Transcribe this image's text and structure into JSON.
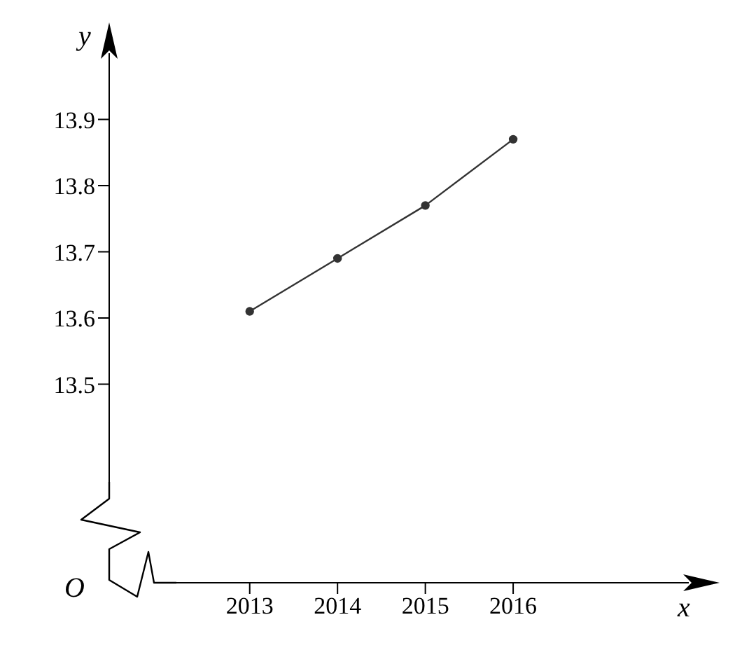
{
  "chart_data": {
    "type": "line",
    "xlabel": "x",
    "ylabel": "y",
    "annotations": [
      "O"
    ],
    "categories": [
      "2013",
      "2014",
      "2015",
      "2016"
    ],
    "series": [
      {
        "color": "#333333",
        "values": [
          13.61,
          13.69,
          13.77,
          13.87
        ]
      }
    ],
    "ylim": [
      13.2,
      14.0
    ],
    "yticks": [
      13.5,
      13.6,
      13.7,
      13.8,
      13.9
    ],
    "marker": "circle",
    "grid": false
  }
}
